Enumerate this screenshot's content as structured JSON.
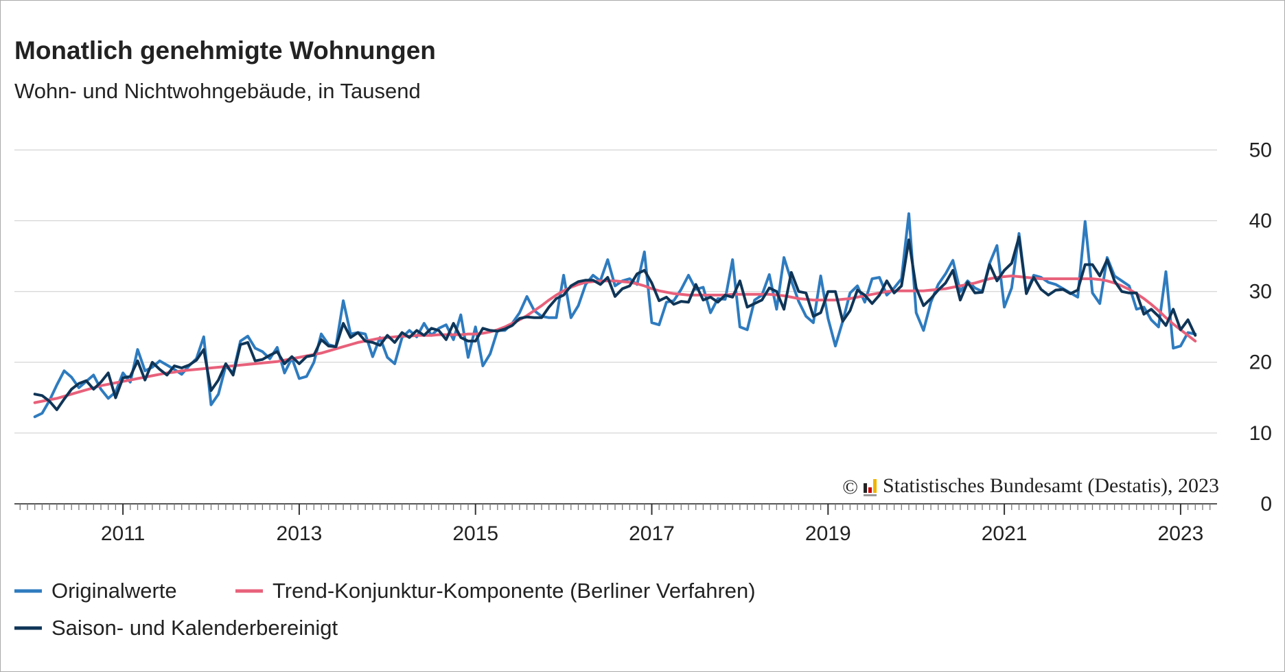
{
  "chart_data": {
    "type": "line",
    "title": "Monatlich genehmigte Wohnungen",
    "subtitle": "Wohn- und Nichtwohngebäude, in Tausend",
    "copyright": "©",
    "source": "Statistisches Bundesamt (Destatis), 2023",
    "categories": [
      null,
      null,
      null,
      null,
      null,
      null,
      null,
      null,
      null,
      null,
      null,
      null,
      "2011",
      null,
      null,
      null,
      null,
      null,
      null,
      null,
      null,
      null,
      null,
      null,
      null,
      null,
      null,
      null,
      null,
      null,
      null,
      null,
      null,
      null,
      null,
      null,
      "2013",
      null,
      null,
      null,
      null,
      null,
      null,
      null,
      null,
      null,
      null,
      null,
      null,
      null,
      null,
      null,
      null,
      null,
      null,
      null,
      null,
      null,
      null,
      null,
      "2015",
      null,
      null,
      null,
      null,
      null,
      null,
      null,
      null,
      null,
      null,
      null,
      null,
      null,
      null,
      null,
      null,
      null,
      null,
      null,
      null,
      null,
      null,
      null,
      "2017",
      null,
      null,
      null,
      null,
      null,
      null,
      null,
      null,
      null,
      null,
      null,
      null,
      null,
      null,
      null,
      null,
      null,
      null,
      null,
      null,
      null,
      null,
      null,
      "2019",
      null,
      null,
      null,
      null,
      null,
      null,
      null,
      null,
      null,
      null,
      null,
      null,
      null,
      null,
      null,
      null,
      null,
      null,
      null,
      null,
      null,
      null,
      null,
      "2021",
      null,
      null,
      null,
      null,
      null,
      null,
      null,
      null,
      null,
      null,
      null,
      null,
      null,
      null,
      null,
      null,
      null,
      null,
      null,
      null,
      null,
      null,
      null,
      "2023",
      null,
      null
    ],
    "series": [
      {
        "name": "Originalwerte",
        "color": "#2e7bbf",
        "values": [
          12.3,
          12.8,
          14.6,
          16.8,
          18.8,
          17.9,
          16.4,
          17.3,
          18.2,
          16.2,
          14.9,
          15.8,
          18.5,
          17.2,
          21.8,
          18.8,
          19.3,
          20.2,
          19.6,
          19.0,
          18.3,
          19.5,
          20.5,
          23.6,
          14.0,
          15.5,
          19.5,
          18.5,
          23.0,
          23.7,
          22.0,
          21.5,
          20.5,
          22.1,
          18.5,
          20.6,
          17.7,
          18.0,
          20.0,
          24.0,
          22.5,
          22.2,
          28.7,
          24.0,
          24.2,
          24.0,
          20.8,
          23.5,
          20.7,
          19.8,
          23.5,
          24.5,
          23.6,
          25.5,
          23.8,
          24.8,
          25.3,
          23.2,
          26.7,
          20.7,
          25.0,
          19.5,
          21.2,
          24.5,
          24.5,
          25.5,
          27.0,
          29.3,
          27.3,
          26.5,
          26.3,
          26.3,
          32.3,
          26.3,
          28.0,
          31.0,
          32.3,
          31.5,
          34.5,
          30.8,
          31.5,
          31.8,
          31.0,
          35.6,
          25.6,
          25.3,
          28.5,
          28.7,
          30.3,
          32.3,
          30.3,
          30.6,
          27.0,
          29.0,
          28.9,
          34.5,
          25.0,
          24.6,
          28.8,
          29.5,
          32.4,
          27.5,
          34.8,
          31.5,
          28.6,
          26.5,
          25.6,
          32.2,
          26.2,
          22.3,
          25.8,
          29.8,
          30.8,
          28.5,
          31.8,
          32.0,
          29.5,
          30.5,
          31.8,
          41.0,
          27.0,
          24.5,
          28.5,
          31.0,
          32.5,
          34.4,
          30.0,
          31.5,
          30.5,
          30.0,
          34.0,
          36.5,
          27.8,
          30.5,
          38.2,
          29.8,
          32.3,
          32.0,
          31.3,
          31.0,
          30.4,
          29.8,
          29.2,
          39.9,
          29.8,
          28.3,
          34.8,
          32.2,
          31.5,
          30.8,
          27.5,
          27.8,
          26.0,
          25.0,
          32.8,
          22.0,
          22.3,
          24.2,
          24.0
        ]
      },
      {
        "name": "Trend-Konjunktur-Komponente (Berliner Verfahren)",
        "color": "#e8607a",
        "values": [
          14.3,
          14.5,
          14.7,
          14.9,
          15.2,
          15.5,
          15.8,
          16.1,
          16.4,
          16.7,
          16.9,
          17.1,
          17.3,
          17.5,
          17.7,
          17.9,
          18.1,
          18.3,
          18.5,
          18.6,
          18.8,
          18.9,
          19.0,
          19.1,
          19.2,
          19.3,
          19.4,
          19.5,
          19.6,
          19.7,
          19.8,
          19.9,
          20.0,
          20.1,
          20.3,
          20.5,
          20.7,
          20.9,
          21.1,
          21.3,
          21.6,
          21.9,
          22.2,
          22.5,
          22.8,
          23.0,
          23.2,
          23.4,
          23.5,
          23.6,
          23.7,
          23.7,
          23.8,
          23.8,
          23.8,
          23.9,
          23.9,
          23.9,
          23.9,
          24.0,
          24.0,
          24.1,
          24.3,
          24.6,
          25.0,
          25.5,
          26.0,
          26.6,
          27.3,
          28.0,
          28.8,
          29.5,
          30.1,
          30.6,
          31.0,
          31.3,
          31.4,
          31.5,
          31.5,
          31.5,
          31.4,
          31.3,
          31.1,
          30.8,
          30.4,
          30.1,
          29.9,
          29.7,
          29.6,
          29.5,
          29.5,
          29.5,
          29.5,
          29.5,
          29.5,
          29.6,
          29.6,
          29.6,
          29.6,
          29.6,
          29.6,
          29.5,
          29.4,
          29.2,
          29.0,
          28.9,
          28.8,
          28.8,
          28.8,
          28.8,
          28.9,
          29.0,
          29.2,
          29.4,
          29.6,
          29.8,
          30.0,
          30.1,
          30.1,
          30.1,
          30.1,
          30.1,
          30.2,
          30.3,
          30.4,
          30.6,
          30.8,
          31.0,
          31.2,
          31.5,
          31.8,
          32.0,
          32.1,
          32.2,
          32.1,
          32.0,
          31.9,
          31.8,
          31.8,
          31.8,
          31.8,
          31.8,
          31.8,
          31.8,
          31.8,
          31.7,
          31.5,
          31.2,
          30.8,
          30.3,
          29.7,
          29.0,
          28.2,
          27.3,
          26.3,
          25.4,
          24.6,
          23.8,
          23.0
        ]
      },
      {
        "name": "Saison- und Kalenderbereinigt",
        "color": "#0f3557",
        "values": [
          15.5,
          15.3,
          14.5,
          13.3,
          14.8,
          16.2,
          17.0,
          17.4,
          16.2,
          17.2,
          18.5,
          15.0,
          17.8,
          18.0,
          20.2,
          17.5,
          20.0,
          19.0,
          18.2,
          19.5,
          19.2,
          19.6,
          20.3,
          21.8,
          16.0,
          17.5,
          19.8,
          18.2,
          22.5,
          22.8,
          20.2,
          20.4,
          21.0,
          21.5,
          19.8,
          20.8,
          19.8,
          20.8,
          21.0,
          23.2,
          22.3,
          22.2,
          25.5,
          23.5,
          24.2,
          23.0,
          22.8,
          22.4,
          23.8,
          22.8,
          24.2,
          23.5,
          24.5,
          23.8,
          24.8,
          24.5,
          23.2,
          25.5,
          23.5,
          23.0,
          23.0,
          24.8,
          24.5,
          24.4,
          24.7,
          25.2,
          26.2,
          26.4,
          26.3,
          26.3,
          27.8,
          29.0,
          29.5,
          30.8,
          31.4,
          31.6,
          31.6,
          31.0,
          32.0,
          29.3,
          30.4,
          30.8,
          32.5,
          33.0,
          31.2,
          28.7,
          29.2,
          28.2,
          28.6,
          28.5,
          31.0,
          28.8,
          29.2,
          28.5,
          29.5,
          29.2,
          31.5,
          27.8,
          28.3,
          28.8,
          30.5,
          30.0,
          27.5,
          32.7,
          30.0,
          29.8,
          26.5,
          27.0,
          30.0,
          30.0,
          25.8,
          27.3,
          30.2,
          29.5,
          28.3,
          29.5,
          31.5,
          29.8,
          30.8,
          37.3,
          30.5,
          28.0,
          29.0,
          30.2,
          31.2,
          33.0,
          28.8,
          31.3,
          29.8,
          29.9,
          33.8,
          31.5,
          33.0,
          34.0,
          37.7,
          29.7,
          32.0,
          30.3,
          29.5,
          30.2,
          30.3,
          29.7,
          30.2,
          33.8,
          33.8,
          32.2,
          34.5,
          31.5,
          30.0,
          29.8,
          29.8,
          26.8,
          27.5,
          26.5,
          25.2,
          27.5,
          24.6,
          26.0,
          23.8
        ]
      }
    ],
    "ylim": [
      0,
      50
    ],
    "yticks": [
      0,
      10,
      20,
      30,
      40,
      50
    ],
    "grid": true
  }
}
